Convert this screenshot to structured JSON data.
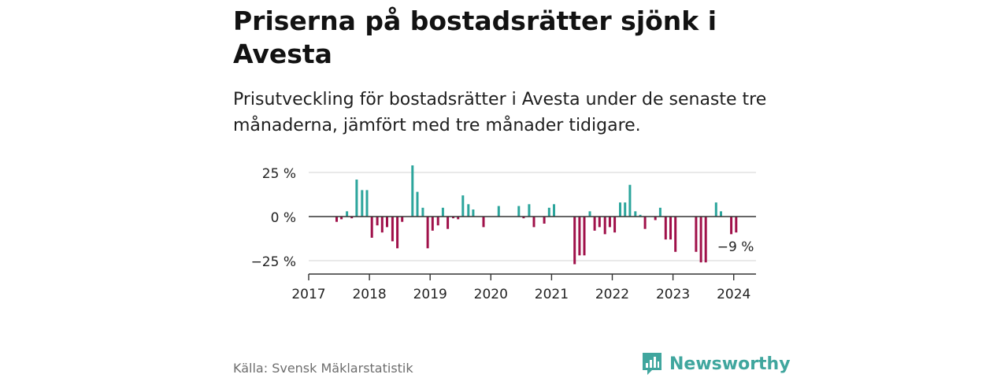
{
  "header": {
    "title": "Priserna på bostadsrätter sjönk i Avesta",
    "subtitle": "Prisutveckling för bostadsrätter i Avesta under de senaste tre månaderna, jämfört med tre månader tidigare."
  },
  "footer": {
    "source": "Källa: Svensk Mäklarstatistik",
    "brand": "Newsworthy"
  },
  "colors": {
    "positive": "#2ca59c",
    "negative": "#a0114a",
    "grid": "#dcdcdc",
    "axis": "#333333",
    "brand": "#40a69e"
  },
  "chart_data": {
    "type": "bar",
    "title": "Priserna på bostadsrätter sjönk i Avesta",
    "xlabel": "",
    "ylabel": "",
    "ylim": [
      -32,
      30
    ],
    "xlim": [
      2017.0,
      2024.4
    ],
    "yticks": [
      25,
      0,
      -25
    ],
    "ytick_labels": [
      "25 %",
      "0 %",
      "−25 %"
    ],
    "xticks": [
      2017,
      2018,
      2019,
      2020,
      2021,
      2022,
      2023,
      2024
    ],
    "xtick_labels": [
      "2017",
      "2018",
      "2019",
      "2020",
      "2021",
      "2022",
      "2023",
      "2024"
    ],
    "grid": true,
    "annotation": {
      "label": "−9 %",
      "value": -9
    },
    "series": [
      {
        "name": "Prisutveckling",
        "points": [
          {
            "x": 2017.46,
            "y": -3
          },
          {
            "x": 2017.54,
            "y": -1.5
          },
          {
            "x": 2017.63,
            "y": 3
          },
          {
            "x": 2017.71,
            "y": -1
          },
          {
            "x": 2017.79,
            "y": 21
          },
          {
            "x": 2017.88,
            "y": 15
          },
          {
            "x": 2017.96,
            "y": 15
          },
          {
            "x": 2018.04,
            "y": -12
          },
          {
            "x": 2018.13,
            "y": -5
          },
          {
            "x": 2018.21,
            "y": -9
          },
          {
            "x": 2018.29,
            "y": -6
          },
          {
            "x": 2018.38,
            "y": -14
          },
          {
            "x": 2018.46,
            "y": -18
          },
          {
            "x": 2018.54,
            "y": -3
          },
          {
            "x": 2018.71,
            "y": 29
          },
          {
            "x": 2018.79,
            "y": 14
          },
          {
            "x": 2018.88,
            "y": 5
          },
          {
            "x": 2018.96,
            "y": -18
          },
          {
            "x": 2019.04,
            "y": -8
          },
          {
            "x": 2019.13,
            "y": -5
          },
          {
            "x": 2019.21,
            "y": 5
          },
          {
            "x": 2019.29,
            "y": -7
          },
          {
            "x": 2019.38,
            "y": -1
          },
          {
            "x": 2019.46,
            "y": -1.5
          },
          {
            "x": 2019.54,
            "y": 12
          },
          {
            "x": 2019.63,
            "y": 7
          },
          {
            "x": 2019.71,
            "y": 4
          },
          {
            "x": 2019.88,
            "y": -6
          },
          {
            "x": 2020.13,
            "y": 6
          },
          {
            "x": 2020.46,
            "y": 6
          },
          {
            "x": 2020.54,
            "y": -1
          },
          {
            "x": 2020.63,
            "y": 7
          },
          {
            "x": 2020.71,
            "y": -6
          },
          {
            "x": 2020.88,
            "y": -4
          },
          {
            "x": 2020.96,
            "y": 5
          },
          {
            "x": 2021.04,
            "y": 7
          },
          {
            "x": 2021.38,
            "y": -27
          },
          {
            "x": 2021.46,
            "y": -22
          },
          {
            "x": 2021.54,
            "y": -22
          },
          {
            "x": 2021.63,
            "y": 3
          },
          {
            "x": 2021.71,
            "y": -8
          },
          {
            "x": 2021.79,
            "y": -6
          },
          {
            "x": 2021.88,
            "y": -10
          },
          {
            "x": 2021.96,
            "y": -6
          },
          {
            "x": 2022.04,
            "y": -9
          },
          {
            "x": 2022.13,
            "y": 8
          },
          {
            "x": 2022.21,
            "y": 8
          },
          {
            "x": 2022.29,
            "y": 18
          },
          {
            "x": 2022.38,
            "y": 3
          },
          {
            "x": 2022.46,
            "y": 1
          },
          {
            "x": 2022.54,
            "y": -7
          },
          {
            "x": 2022.71,
            "y": -2
          },
          {
            "x": 2022.79,
            "y": 5
          },
          {
            "x": 2022.88,
            "y": -13
          },
          {
            "x": 2022.96,
            "y": -13
          },
          {
            "x": 2023.04,
            "y": -20
          },
          {
            "x": 2023.38,
            "y": -20
          },
          {
            "x": 2023.46,
            "y": -26
          },
          {
            "x": 2023.54,
            "y": -26
          },
          {
            "x": 2023.71,
            "y": 8
          },
          {
            "x": 2023.79,
            "y": 3
          },
          {
            "x": 2023.96,
            "y": -10
          },
          {
            "x": 2024.04,
            "y": -9
          }
        ]
      }
    ]
  }
}
